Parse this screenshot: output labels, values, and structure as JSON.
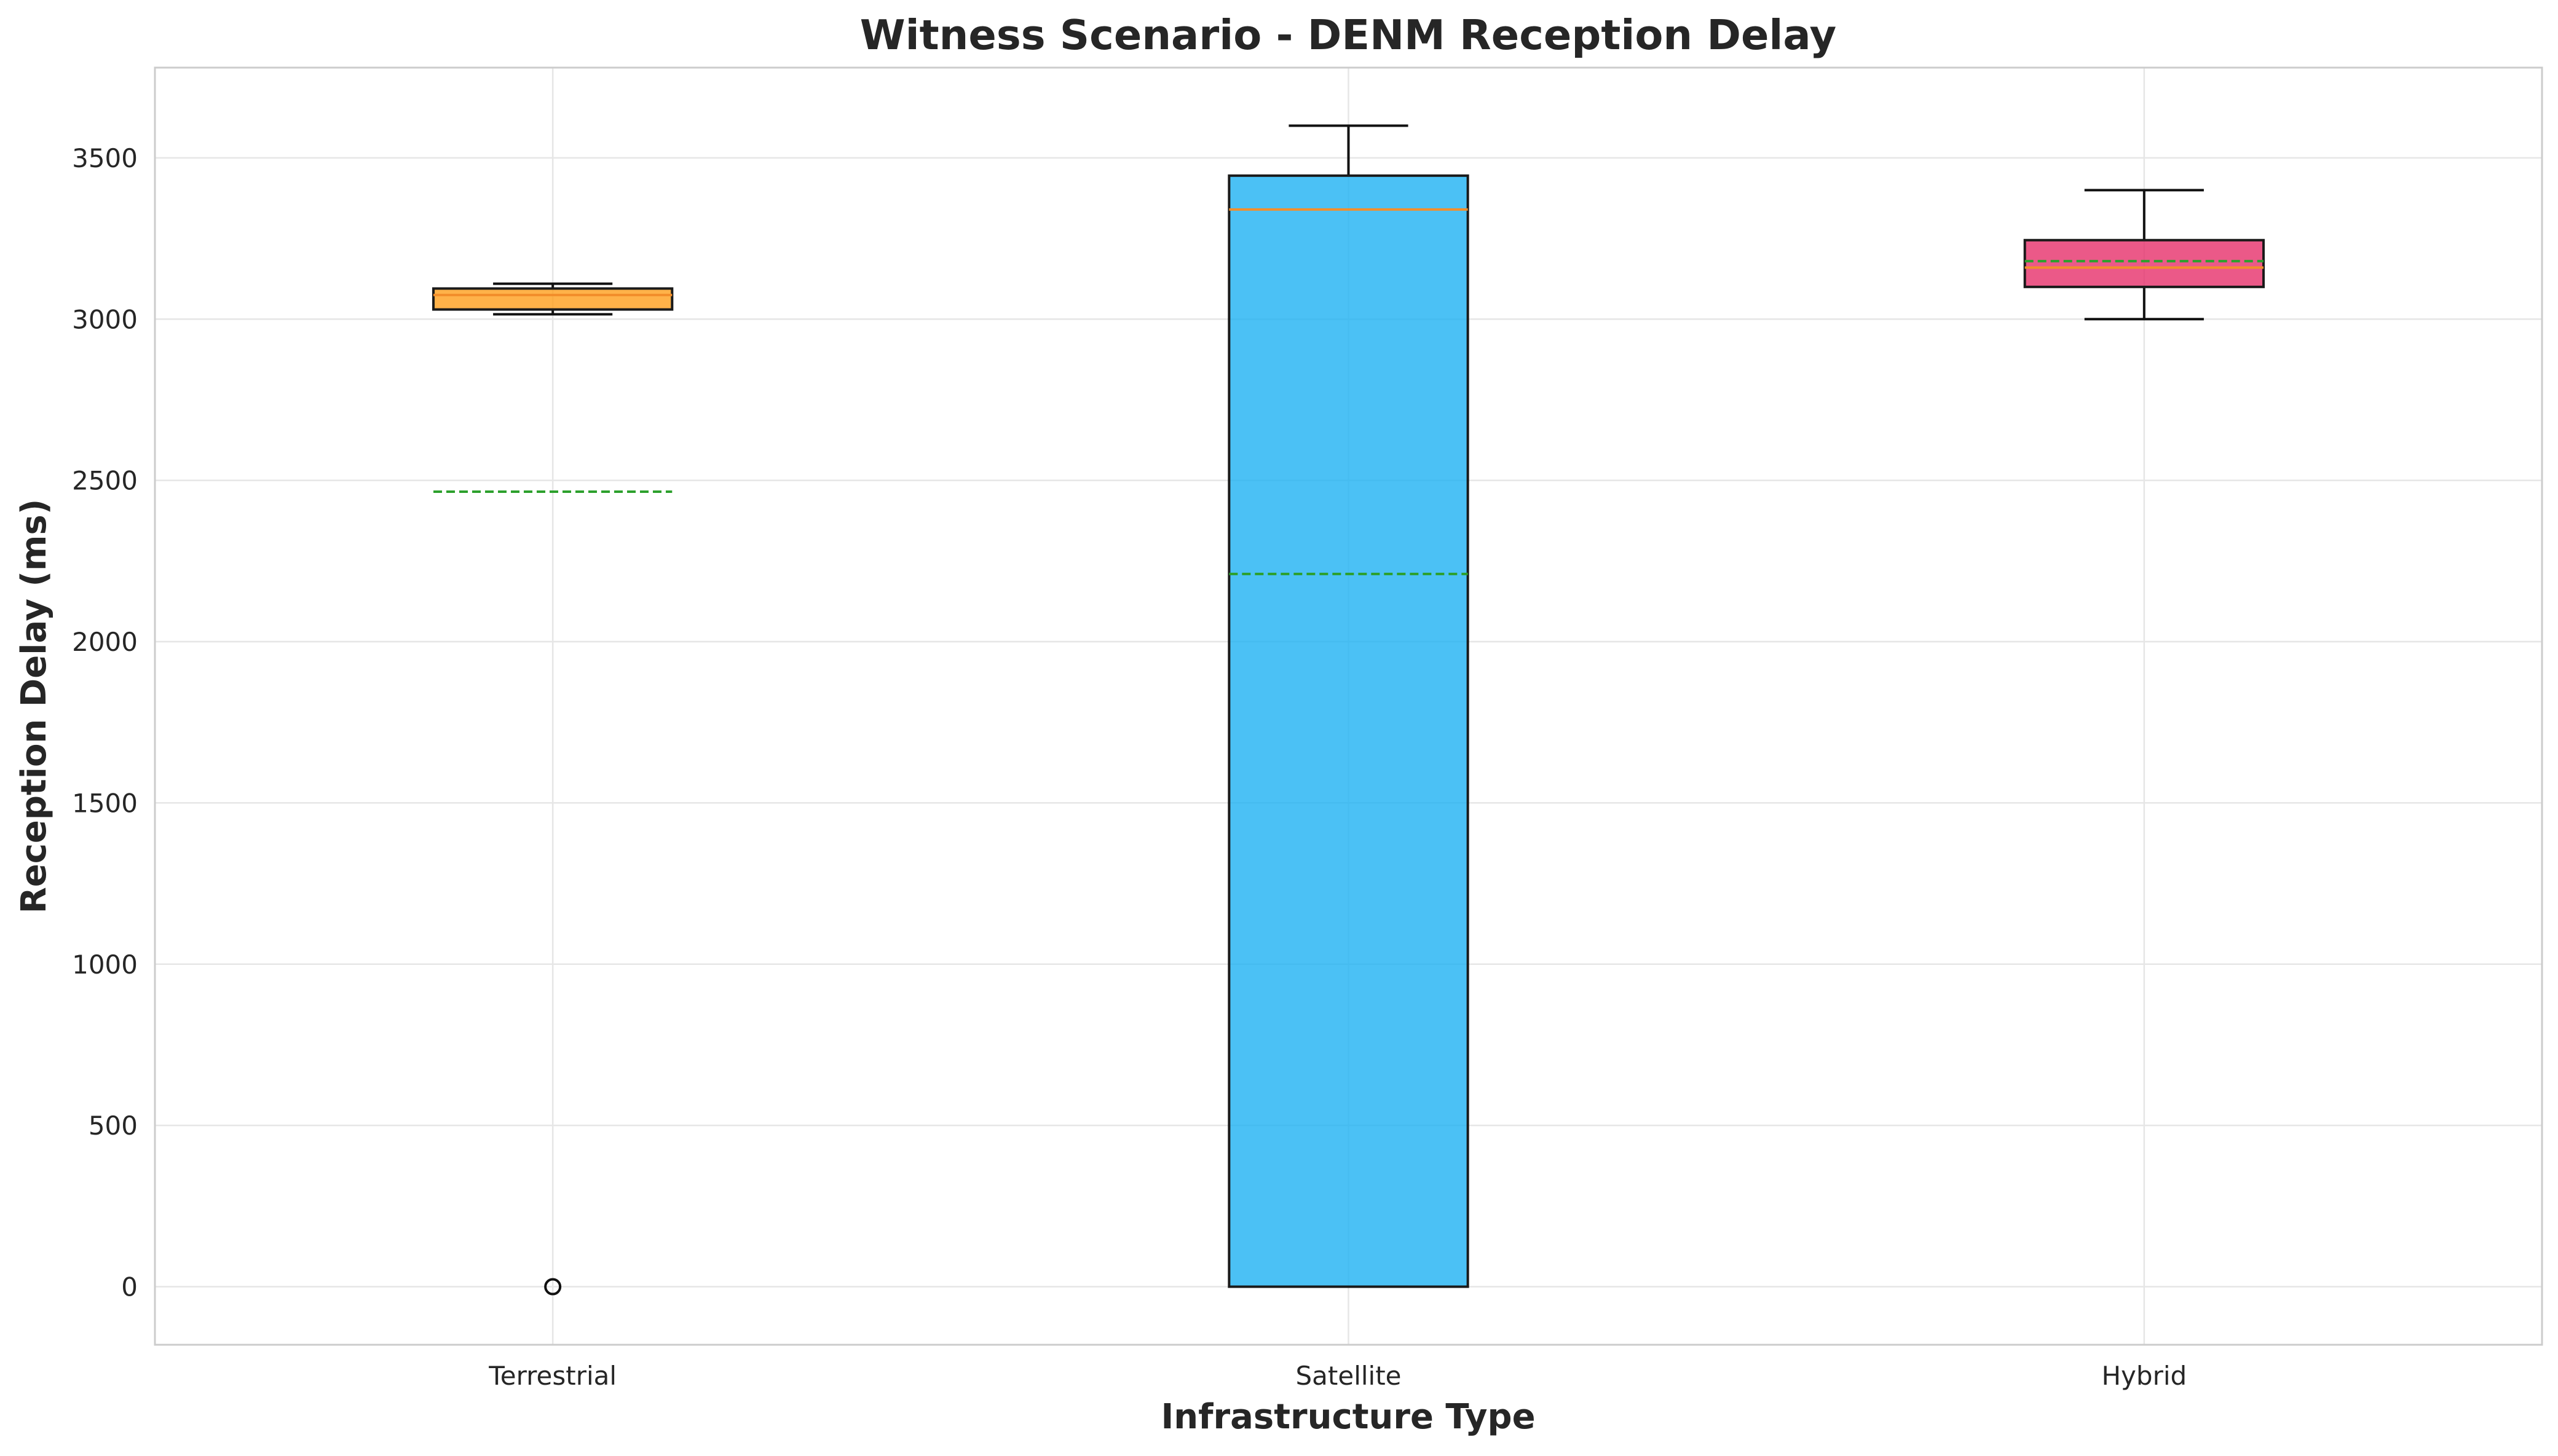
{
  "chart_data": {
    "type": "boxplot",
    "title": "Witness Scenario - DENM Reception Delay",
    "xlabel": "Infrastructure Type",
    "ylabel": "Reception Delay (ms)",
    "ylim": [
      -180,
      3780
    ],
    "yticks": [
      0,
      500,
      1000,
      1500,
      2000,
      2500,
      3000,
      3500
    ],
    "grid": true,
    "categories": [
      "Terrestrial",
      "Satellite",
      "Hybrid"
    ],
    "boxes": [
      {
        "label": "Terrestrial",
        "whisker_low": 3015,
        "q1": 3030,
        "median": 3075,
        "q3": 3095,
        "whisker_high": 3110,
        "mean": 2465,
        "outliers": [
          0
        ],
        "color": "#ff9f1c"
      },
      {
        "label": "Satellite",
        "whisker_low": 0,
        "q1": 0,
        "median": 3340,
        "q3": 3445,
        "whisker_high": 3600,
        "mean": 2210,
        "outliers": [],
        "color": "#1eb1f2"
      },
      {
        "label": "Hybrid",
        "whisker_low": 3000,
        "q1": 3100,
        "median": 3160,
        "q3": 3245,
        "whisker_high": 3400,
        "mean": 3180,
        "outliers": [],
        "color": "#e6306a"
      }
    ],
    "colors": {
      "median_line": "#f28e2b",
      "mean_line": "#2ca02c",
      "box_edge": "#1a1a1a",
      "grid": "#e6e6e6",
      "frame": "#cccccc"
    }
  }
}
